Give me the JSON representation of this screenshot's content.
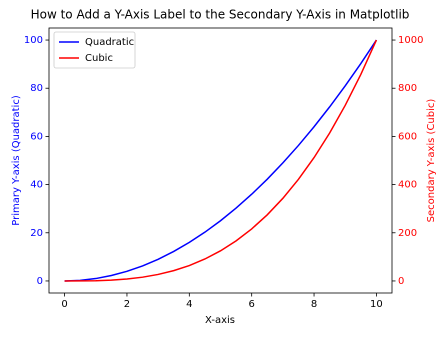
{
  "chart_data": {
    "type": "line",
    "title": "How to Add a Y-Axis Label to the Secondary Y-Axis in Matplotlib",
    "xlabel": "X-axis",
    "ylabel": "Primary Y-axis (Quadratic)",
    "y2label": "Secondary Y-axis (Cubic)",
    "x": [
      0,
      0.5,
      1,
      1.5,
      2,
      2.5,
      3,
      3.5,
      4,
      4.5,
      5,
      5.5,
      6,
      6.5,
      7,
      7.5,
      8,
      8.5,
      9,
      9.5,
      10
    ],
    "series": [
      {
        "name": "Quadratic",
        "color": "#0000ff",
        "axis": "y",
        "values": [
          0,
          0.25,
          1,
          2.25,
          4,
          6.25,
          9,
          12.25,
          16,
          20.25,
          25,
          30.25,
          36,
          42.25,
          49,
          56.25,
          64,
          72.25,
          81,
          90.25,
          100
        ]
      },
      {
        "name": "Cubic",
        "color": "#ff0000",
        "axis": "y2",
        "values": [
          0,
          0.125,
          1,
          3.375,
          8,
          15.625,
          27,
          42.875,
          64,
          91.125,
          125,
          166.375,
          216,
          274.625,
          343,
          421.875,
          512,
          614.125,
          729,
          857.375,
          1000
        ]
      }
    ],
    "xlim": [
      -0.5,
      10.5
    ],
    "xticks": [
      0,
      2,
      4,
      6,
      8,
      10
    ],
    "ylim": [
      -5,
      105
    ],
    "yticks": [
      0,
      20,
      40,
      60,
      80,
      100
    ],
    "y2lim": [
      -50,
      1050
    ],
    "y2ticks": [
      0,
      200,
      400,
      600,
      800,
      1000
    ],
    "legend": "upper left",
    "grid": false
  }
}
